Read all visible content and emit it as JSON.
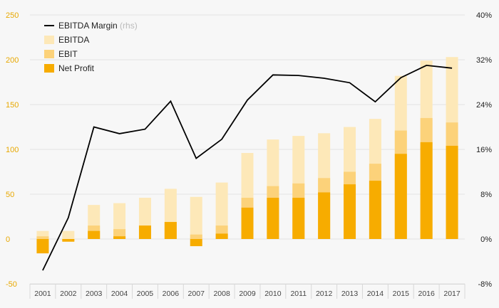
{
  "chart_data": {
    "type": "bar",
    "categories": [
      "2001",
      "2002",
      "2003",
      "2004",
      "2005",
      "2006",
      "2007",
      "2008",
      "2009",
      "2010",
      "2011",
      "2012",
      "2013",
      "2014",
      "2015",
      "2016",
      "2017"
    ],
    "series": [
      {
        "name": "EBITDA",
        "kind": "bar",
        "values": [
          9,
          9,
          38,
          40,
          46,
          56,
          47,
          63,
          96,
          111,
          115,
          118,
          125,
          134,
          182,
          199,
          203
        ]
      },
      {
        "name": "EBIT",
        "kind": "bar",
        "values": [
          3,
          -2,
          15,
          11,
          15,
          19,
          5,
          15,
          46,
          59,
          62,
          68,
          75,
          84,
          121,
          135,
          130
        ]
      },
      {
        "name": "Net Profit",
        "kind": "bar",
        "values": [
          -16,
          -3,
          9,
          3,
          15,
          19,
          -8,
          6,
          35,
          46,
          46,
          52,
          61,
          65,
          95,
          108,
          104
        ]
      },
      {
        "name": "EBITDA Margin",
        "axis": "right",
        "kind": "line",
        "values": [
          -5.6,
          3.8,
          20.0,
          18.8,
          19.6,
          24.6,
          14.4,
          17.8,
          24.8,
          29.3,
          29.2,
          28.7,
          27.9,
          24.5,
          28.8,
          31.0,
          30.5
        ]
      }
    ],
    "legend": [
      {
        "label": "EBITDA Margin",
        "note": "(rhs)",
        "marker": "line"
      },
      {
        "label": "EBITDA",
        "note": "",
        "marker": "box"
      },
      {
        "label": "EBIT",
        "note": "",
        "marker": "box"
      },
      {
        "label": "Net Profit",
        "note": "",
        "marker": "box"
      }
    ],
    "legend_position": "top-left",
    "ylim": [
      -50,
      250
    ],
    "yticks": [
      "-50",
      "0",
      "50",
      "100",
      "150",
      "200",
      "250"
    ],
    "y2lim": [
      -8,
      40
    ],
    "y2ticks": [
      "-8%",
      "0%",
      "8%",
      "16%",
      "24%",
      "32%",
      "40%"
    ],
    "grid": true,
    "colors": {
      "ebitda": "#fde8b8",
      "ebit": "#fcd27a",
      "net_profit": "#f7ac00",
      "margin_line": "#000000",
      "left_axis_text": "#e8a800",
      "grid": "#e3e3e3"
    }
  }
}
